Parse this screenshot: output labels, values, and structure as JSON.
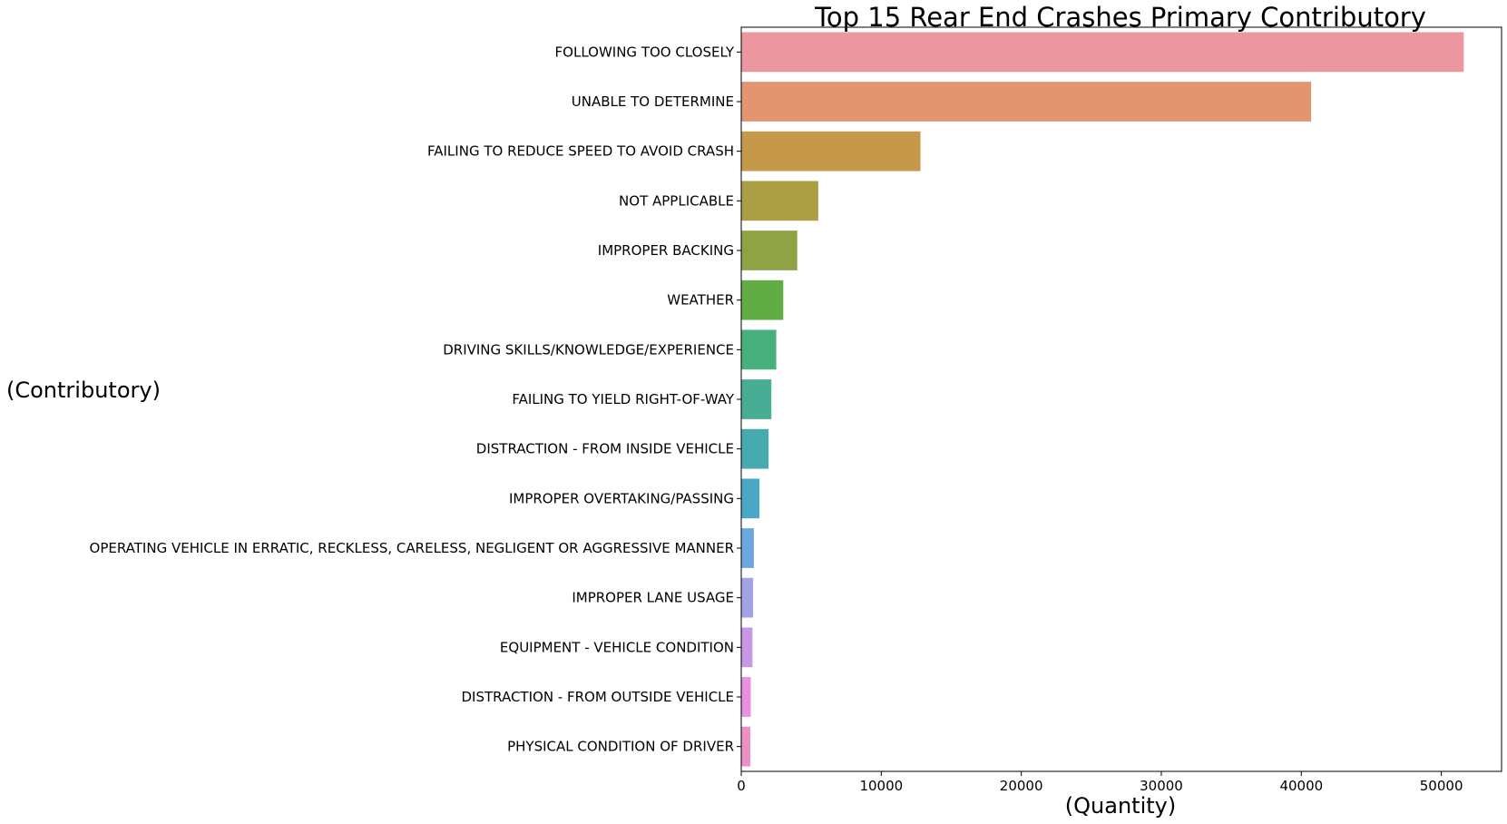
{
  "chart_data": {
    "type": "bar",
    "orientation": "horizontal",
    "title": "Top 15 Rear End Crashes Primary Contributory",
    "xlabel": "(Quantity)",
    "ylabel": "(Contributory)",
    "xlim": [
      0,
      54300
    ],
    "xticks": [
      0,
      10000,
      20000,
      30000,
      40000,
      50000
    ],
    "xtick_labels": [
      "0",
      "10000",
      "20000",
      "30000",
      "40000",
      "50000"
    ],
    "grid": false,
    "legend": "none",
    "categories": [
      "FOLLOWING TOO CLOSELY",
      "UNABLE TO DETERMINE",
      "FAILING TO REDUCE SPEED TO AVOID CRASH",
      "NOT APPLICABLE",
      "IMPROPER BACKING",
      "WEATHER",
      "DRIVING SKILLS/KNOWLEDGE/EXPERIENCE",
      "FAILING TO YIELD RIGHT-OF-WAY",
      "DISTRACTION - FROM INSIDE VEHICLE",
      "IMPROPER OVERTAKING/PASSING",
      "OPERATING VEHICLE IN ERRATIC, RECKLESS, CARELESS, NEGLIGENT OR AGGRESSIVE MANNER",
      "IMPROPER LANE USAGE",
      "EQUIPMENT - VEHICLE CONDITION",
      "DISTRACTION - FROM OUTSIDE VEHICLE",
      "PHYSICAL CONDITION OF DRIVER"
    ],
    "values": [
      51600,
      40700,
      12800,
      5500,
      4000,
      3000,
      2500,
      2150,
      1950,
      1300,
      900,
      850,
      800,
      680,
      650
    ],
    "colors": [
      "#ec96a0",
      "#e39471",
      "#c6994a",
      "#ab9e45",
      "#8fa246",
      "#61ac44",
      "#48b07d",
      "#48ad95",
      "#46aaae",
      "#4aa8c6",
      "#6ca7e1",
      "#a2a2e6",
      "#c898e7",
      "#e690df",
      "#ec91c5"
    ]
  }
}
